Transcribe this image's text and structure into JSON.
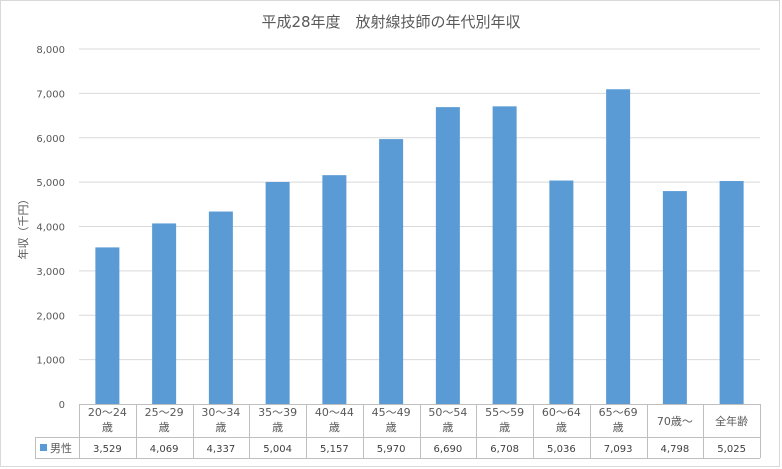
{
  "chart_data": {
    "type": "bar",
    "title": "平成28年度　放射線技師の年代別年収",
    "ylabel": "年収（千円）",
    "xlabel": "",
    "categories": [
      [
        "20～24",
        "歳"
      ],
      [
        "25～29",
        "歳"
      ],
      [
        "30～34",
        "歳"
      ],
      [
        "35～39",
        "歳"
      ],
      [
        "40～44",
        "歳"
      ],
      [
        "45～49",
        "歳"
      ],
      [
        "50～54",
        "歳"
      ],
      [
        "55～59",
        "歳"
      ],
      [
        "60～64",
        "歳"
      ],
      [
        "65～69",
        "歳"
      ],
      [
        "70歳～"
      ],
      [
        "全年齢"
      ]
    ],
    "series": [
      {
        "name": "男性",
        "color": "#5b9bd5",
        "values": [
          3529,
          4069,
          4337,
          5004,
          5157,
          5970,
          6690,
          6708,
          5036,
          7093,
          4798,
          5025
        ],
        "value_labels": [
          "3,529",
          "4,069",
          "4,337",
          "5,004",
          "5,157",
          "5,970",
          "6,690",
          "6,708",
          "5,036",
          "7,093",
          "4,798",
          "5,025"
        ]
      }
    ],
    "ylim": [
      0,
      8000
    ],
    "yticks": [
      "0",
      "1,000",
      "2,000",
      "3,000",
      "4,000",
      "5,000",
      "6,000",
      "7,000",
      "8,000"
    ],
    "grid": true,
    "legend": "data-table",
    "data_table": true
  }
}
